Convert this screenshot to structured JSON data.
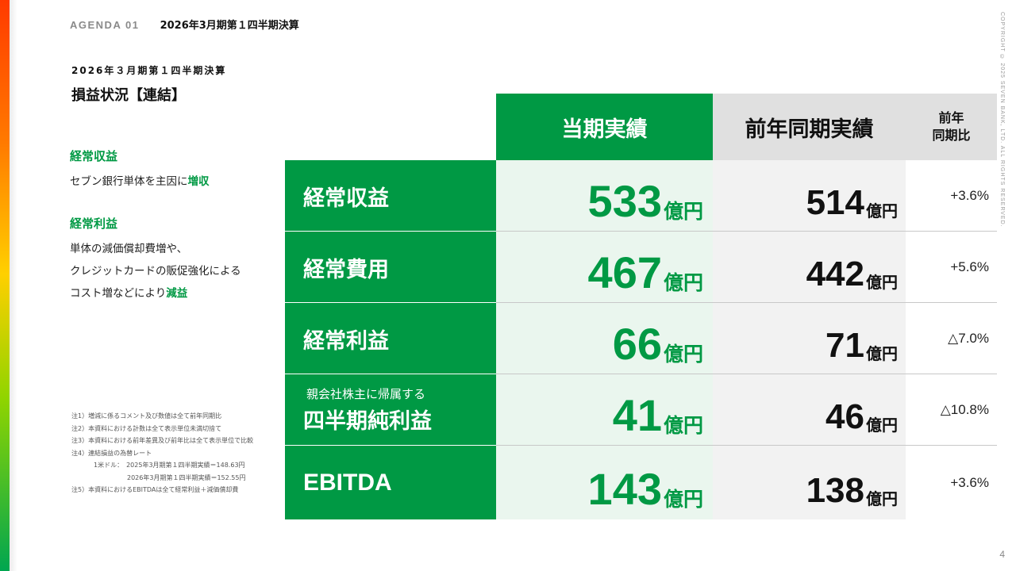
{
  "header": {
    "agenda_label": "AGENDA 01",
    "agenda_title": "2026年3月期第１四半期決算"
  },
  "section": {
    "subtitle": "2026年３月期第１四半期決算",
    "title": "損益状況【連結】"
  },
  "notes": [
    {
      "heading": "経常収益",
      "lines": [
        {
          "text": "セブン銀行単体を主因に",
          "highlight": "増収"
        }
      ]
    },
    {
      "heading": "経常利益",
      "lines": [
        {
          "text": "単体の減価償却費増や、",
          "highlight": ""
        },
        {
          "text": "クレジットカードの販促強化による",
          "highlight": ""
        },
        {
          "text": "コスト増などにより",
          "highlight": "減益"
        }
      ]
    }
  ],
  "footnotes": [
    "注1）増減に係るコメント及び数値は全て前年同期比",
    "注2）本資料における計数は全て表示単位未満切捨て",
    "注3）本資料における前年差異及び前年比は全て表示単位で比較",
    "注4）連結損益の為替レート",
    "1米ドル：　2025年3月期第１四半期実績＝148.63円",
    "2026年3月期第１四半期実績＝152.55円",
    "注5）本資料におけるEBITDAは全て経常利益＋減価償却費"
  ],
  "table": {
    "col_current": "当期実績",
    "col_prev": "前年同期実績",
    "col_ratio_line1": "前年",
    "col_ratio_line2": "同期比",
    "unit": "億円",
    "rows": [
      {
        "label_small": "",
        "label": "経常収益",
        "current": "533",
        "prev": "514",
        "ratio": "+3.6%"
      },
      {
        "label_small": "",
        "label": "経常費用",
        "current": "467",
        "prev": "442",
        "ratio": "+5.6%"
      },
      {
        "label_small": "",
        "label": "経常利益",
        "current": "66",
        "prev": "71",
        "ratio": "△7.0%"
      },
      {
        "label_small": "親会社株主に帰属する",
        "label": "四半期純利益",
        "current": "41",
        "prev": "46",
        "ratio": "△10.8%"
      },
      {
        "label_small": "",
        "label": "EBITDA",
        "current": "143",
        "prev": "138",
        "ratio": "+3.6%"
      }
    ]
  },
  "copyright": "COPYRIGHT © 2025 SEVEN BANK, LTD. ALL RIGHTS RESERVED.",
  "page_number": "4",
  "colors": {
    "brand_green": "#009944",
    "accent_gradient": [
      "#ff3a00",
      "#ffd000",
      "#00a650"
    ]
  }
}
